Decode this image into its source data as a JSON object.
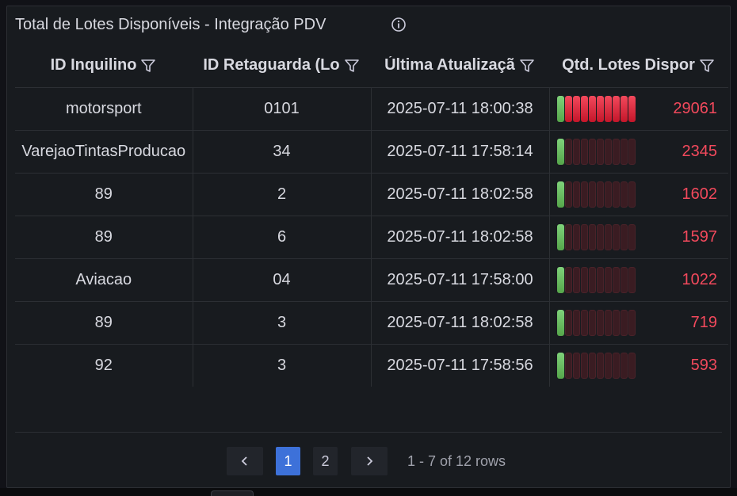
{
  "panel": {
    "title": "Total de Lotes Disponíveis - Integração PDV",
    "info_icon": "info-circle-icon"
  },
  "table": {
    "columns": [
      {
        "label": "ID Inquilino",
        "icon": "filter-icon"
      },
      {
        "label": "ID Retaguarda (Lo",
        "icon": "filter-icon"
      },
      {
        "label": "Última Atualizaçã",
        "icon": "filter-icon"
      },
      {
        "label": "Qtd. Lotes Dispor",
        "icon": "filter-icon"
      }
    ],
    "gauge_colors": {
      "low": "#73bf69",
      "high": "#f2495c",
      "empty": "#3a1c22"
    },
    "gauge_max": 29061,
    "rows": [
      {
        "tenant": "motorsport",
        "retaguarda": "0101",
        "updated": "2025-07-11 18:00:38",
        "lots": "29061",
        "level": 1.0
      },
      {
        "tenant": "VarejaoTintasProducao",
        "retaguarda": "34",
        "updated": "2025-07-11 17:58:14",
        "lots": "2345",
        "level": 0.08
      },
      {
        "tenant": "89",
        "retaguarda": "2",
        "updated": "2025-07-11 18:02:58",
        "lots": "1602",
        "level": 0.055
      },
      {
        "tenant": "89",
        "retaguarda": "6",
        "updated": "2025-07-11 18:02:58",
        "lots": "1597",
        "level": 0.055
      },
      {
        "tenant": "Aviacao",
        "retaguarda": "04",
        "updated": "2025-07-11 17:58:00",
        "lots": "1022",
        "level": 0.035
      },
      {
        "tenant": "89",
        "retaguarda": "3",
        "updated": "2025-07-11 18:02:58",
        "lots": "719",
        "level": 0.025
      },
      {
        "tenant": "92",
        "retaguarda": "3",
        "updated": "2025-07-11 17:58:56",
        "lots": "593",
        "level": 0.02
      }
    ]
  },
  "pagination": {
    "prev_icon": "chevron-left-icon",
    "next_icon": "chevron-right-icon",
    "pages": [
      "1",
      "2"
    ],
    "current_page": "1",
    "summary": "1 - 7 of 12 rows"
  }
}
